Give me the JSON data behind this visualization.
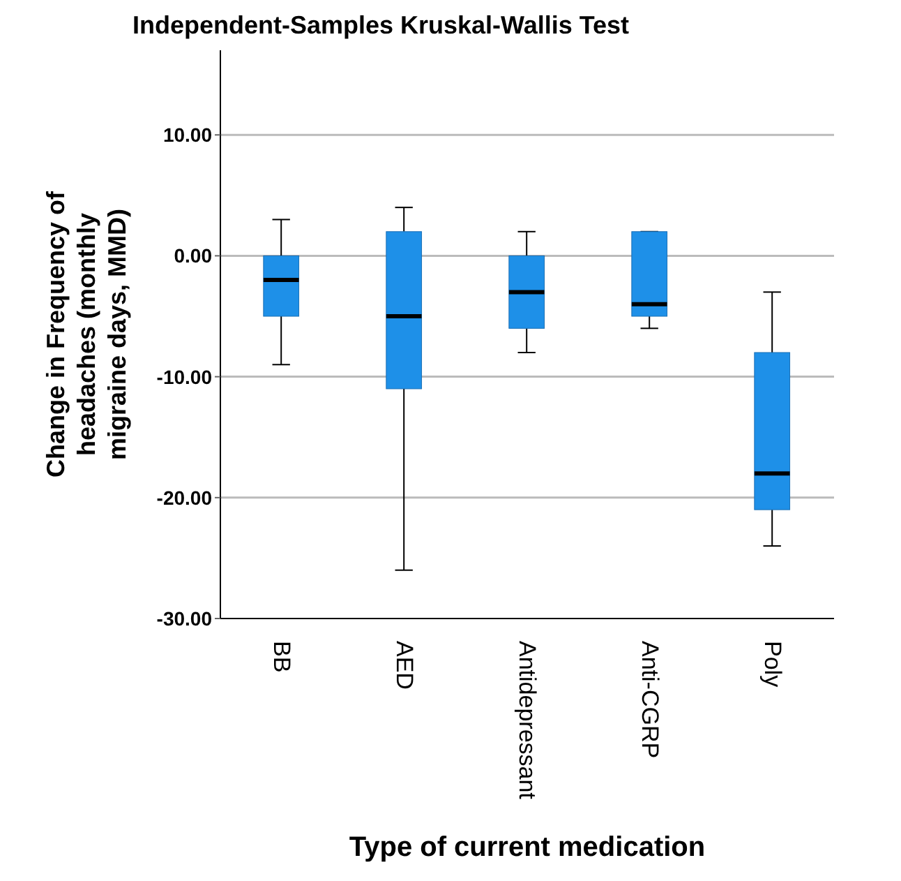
{
  "chart_data": {
    "type": "box",
    "title": "Independent-Samples Kruskal-Wallis Test",
    "xlabel": "Type of current medication",
    "ylabel": "Change in Frequency of headaches (monthly migraine days, MMD)",
    "categories": [
      "BB",
      "AED",
      "Antidepressant",
      "Anti-CGRP",
      "Poly"
    ],
    "boxes": [
      {
        "low": -9,
        "q1": -5,
        "median": -2,
        "q3": 0,
        "high": 3
      },
      {
        "low": -26,
        "q1": -11,
        "median": -5,
        "q3": 2,
        "high": 4
      },
      {
        "low": -8,
        "q1": -6,
        "median": -3,
        "q3": 0,
        "high": 2
      },
      {
        "low": -6,
        "q1": -5,
        "median": -4,
        "q3": 2,
        "high": 2
      },
      {
        "low": -24,
        "q1": -21,
        "median": -18,
        "q3": -8,
        "high": -3
      }
    ],
    "color": "#1e90e8",
    "ylim": [
      -30,
      17
    ],
    "yticks": [
      {
        "value": 10,
        "label": "10.00"
      },
      {
        "value": 0,
        "label": "0.00"
      },
      {
        "value": -10,
        "label": "-10.00"
      },
      {
        "value": -20,
        "label": "-20.00"
      },
      {
        "value": -30,
        "label": "-30.00"
      }
    ],
    "grid": "y"
  }
}
